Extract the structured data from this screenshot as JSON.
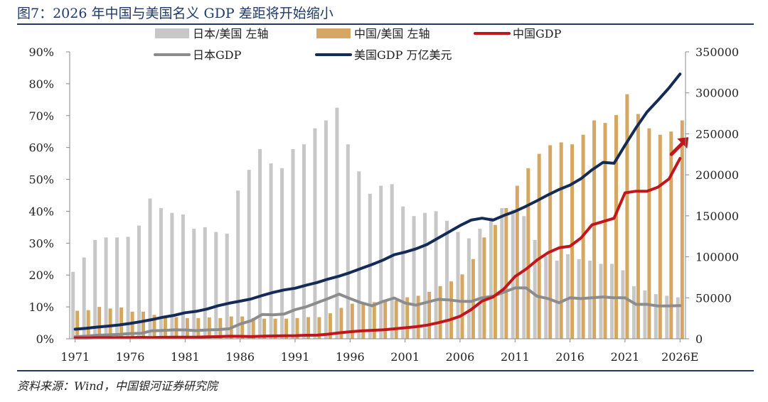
{
  "title": "图7：2026 年中国与美国名义 GDP 差距将开始缩小",
  "source": "资料来源：Wind，中国银河证券研究院",
  "colors": {
    "japan_ratio_bar": "#c7c7c7",
    "china_ratio_bar": "#d4a862",
    "china_gdp": "#c0161d",
    "japan_gdp": "#8c8c8c",
    "us_gdp": "#142a57",
    "header_rule": "#1f3a6b"
  },
  "chart_data": {
    "type": "bar",
    "grid": false,
    "legend_position": "top",
    "years": [
      1971,
      1972,
      1973,
      1974,
      1975,
      1976,
      1977,
      1978,
      1979,
      1980,
      1981,
      1982,
      1983,
      1984,
      1985,
      1986,
      1987,
      1988,
      1989,
      1990,
      1991,
      1992,
      1993,
      1994,
      1995,
      1996,
      1997,
      1998,
      1999,
      2000,
      2001,
      2002,
      2003,
      2004,
      2005,
      2006,
      2007,
      2008,
      2009,
      2010,
      2011,
      2012,
      2013,
      2014,
      2015,
      2016,
      2017,
      2018,
      2019,
      2020,
      2021,
      2022,
      2023,
      2024,
      2025,
      2026
    ],
    "x_tick_labels": [
      "1971",
      "1976",
      "1981",
      "1986",
      "1991",
      "1996",
      "2001",
      "2006",
      "2011",
      "2016",
      "2021",
      "2026E"
    ],
    "left_axis": {
      "ylim": [
        0,
        90
      ],
      "ticks": [
        "0%",
        "10%",
        "20%",
        "30%",
        "40%",
        "50%",
        "60%",
        "70%",
        "80%",
        "90%"
      ]
    },
    "right_axis": {
      "ylim": [
        0,
        350000
      ],
      "ticks": [
        "0",
        "50000",
        "100000",
        "150000",
        "200000",
        "250000",
        "300000",
        "350000"
      ]
    },
    "series": [
      {
        "name": "日本/美国 左轴",
        "kind": "bar",
        "axis": "left",
        "values": [
          21,
          25.5,
          31,
          31.8,
          31.8,
          32,
          35.5,
          44,
          41,
          39.5,
          39,
          34.5,
          35,
          33.5,
          33,
          46.5,
          53,
          59.5,
          55,
          53.5,
          59.5,
          61,
          66,
          68.5,
          72.5,
          61,
          52.5,
          45.5,
          48,
          48.5,
          41.5,
          38.5,
          39.5,
          40,
          37,
          33.5,
          31.5,
          34.5,
          38,
          41,
          40.5,
          38.5,
          31,
          26,
          24.5,
          26.5,
          25,
          24.5,
          23.5,
          23.5,
          21.5,
          16.5,
          15.2,
          14,
          13.5,
          13
        ]
      },
      {
        "name": "中国/美国 左轴",
        "kind": "bar",
        "axis": "left",
        "values": [
          8.8,
          9,
          10,
          9.5,
          9.8,
          8.5,
          8.5,
          7.5,
          6.7,
          6.8,
          6.5,
          6.5,
          6.7,
          6.5,
          7,
          7,
          6.5,
          6.3,
          6.3,
          6.3,
          6.5,
          6.8,
          6.8,
          8,
          9.7,
          11,
          11,
          11.5,
          12,
          12,
          13,
          13.5,
          14.7,
          16.5,
          18,
          20.2,
          25,
          31.8,
          35.7,
          41,
          48,
          53.5,
          58,
          60.7,
          61.6,
          61,
          64,
          68.5,
          67.7,
          70.2,
          76.7,
          70.5,
          66,
          64,
          65,
          68.5
        ]
      },
      {
        "name": "中国GDP",
        "kind": "line",
        "axis": "right",
        "values": [
          1000,
          1100,
          1400,
          1400,
          1600,
          1500,
          1700,
          1500,
          1800,
          1900,
          2000,
          2000,
          2300,
          2600,
          3100,
          3000,
          2700,
          3100,
          3500,
          3600,
          3800,
          4300,
          4400,
          5600,
          7300,
          8600,
          9600,
          10300,
          10900,
          12100,
          13400,
          14700,
          16600,
          19600,
          22900,
          27500,
          35500,
          46000,
          51000,
          61000,
          76000,
          85000,
          96000,
          105000,
          111000,
          113000,
          123000,
          139000,
          143000,
          147000,
          178000,
          180000,
          180000,
          185000,
          195000,
          220000
        ]
      },
      {
        "name": "日本GDP",
        "kind": "line",
        "axis": "right",
        "values": [
          2500,
          3200,
          4300,
          4800,
          5400,
          6400,
          6800,
          9800,
          10200,
          10900,
          10800,
          10000,
          10800,
          11200,
          12200,
          18000,
          22000,
          29600,
          29300,
          30200,
          35500,
          39000,
          44000,
          49000,
          54500,
          49000,
          44000,
          40300,
          45600,
          49700,
          43700,
          41100,
          44600,
          48100,
          47400,
          45700,
          45600,
          50000,
          52000,
          57000,
          62000,
          62000,
          52000,
          49000,
          44000,
          50000,
          49000,
          50000,
          51000,
          50000,
          50000,
          42000,
          42000,
          40000,
          40000,
          40500
        ]
      },
      {
        "name": "美国GDP 万亿美元",
        "kind": "line",
        "axis": "right",
        "values": [
          11700,
          12800,
          14300,
          15500,
          16900,
          18700,
          21000,
          23500,
          26300,
          28600,
          31800,
          33400,
          36300,
          40400,
          43400,
          45900,
          48600,
          52800,
          56600,
          59600,
          61700,
          65300,
          68600,
          72900,
          76400,
          80700,
          85800,
          90600,
          96000,
          102500,
          105800,
          109800,
          115100,
          122800,
          130400,
          138100,
          144800,
          147100,
          144800,
          150500,
          155400,
          161700,
          168400,
          175500,
          182100,
          187500,
          195400,
          206100,
          215200,
          214100,
          236000,
          257400,
          276700,
          291000,
          306000,
          323000
        ]
      }
    ]
  }
}
